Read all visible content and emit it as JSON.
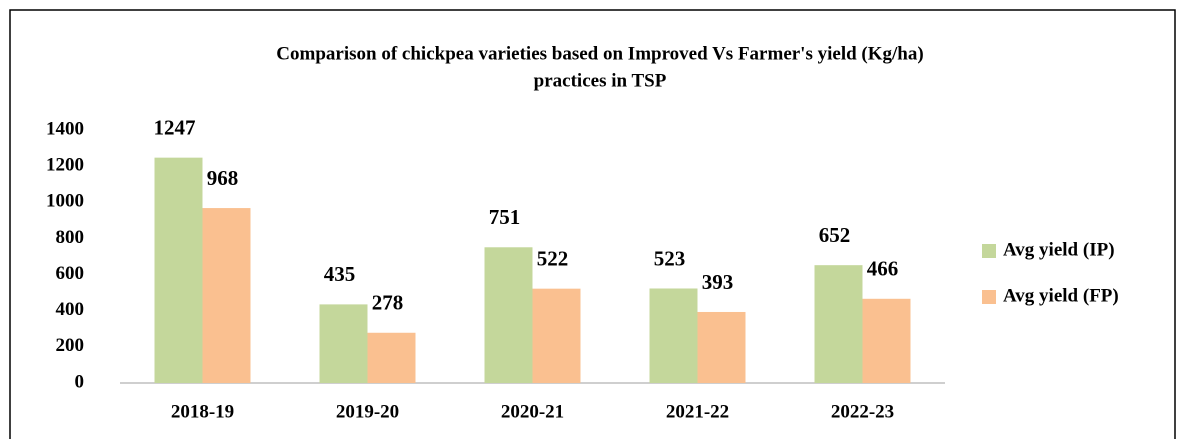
{
  "chart_data": {
    "type": "bar",
    "title": [
      "Comparison of chickpea varieties based on Improved Vs Farmer's yield (Kg/ha)",
      "practices in TSP"
    ],
    "categories": [
      "2018-19",
      "2019-20",
      "2020-21",
      "2021-22",
      "2022-23"
    ],
    "series": [
      {
        "name": "Avg yield (IP)",
        "color": "#c4d79b",
        "values": [
          1247,
          435,
          751,
          523,
          652
        ]
      },
      {
        "name": "Avg yield (FP)",
        "color": "#fac090",
        "values": [
          968,
          278,
          522,
          393,
          466
        ]
      }
    ],
    "ylim": [
      0,
      1400
    ],
    "yticks": [
      0,
      200,
      400,
      600,
      800,
      1000,
      1200,
      1400
    ],
    "grid": false,
    "legend": "right"
  }
}
